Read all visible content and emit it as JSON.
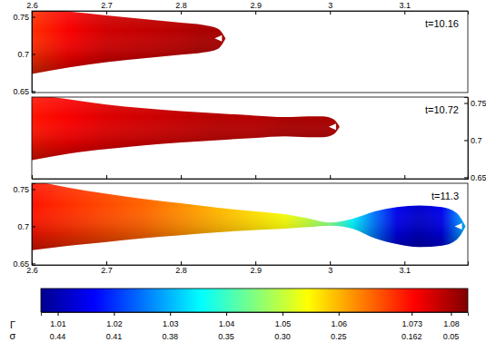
{
  "chart_data": [
    {
      "type": "area",
      "title": "t=10.16",
      "tick_labels": true,
      "xlim": [
        2.6,
        3.185
      ],
      "xticks": [
        2.6,
        2.7,
        2.8,
        2.9,
        3,
        3.1
      ],
      "ylim": [
        0.648,
        0.758
      ],
      "yticks": [
        0.65,
        0.7,
        0.75
      ],
      "x": [
        2.6,
        2.65,
        2.7,
        2.75,
        2.8,
        2.83,
        2.85,
        2.86
      ],
      "upper": [
        0.763,
        0.757,
        0.752,
        0.747,
        0.742,
        0.739,
        0.734,
        0.721
      ],
      "lower": [
        0.673,
        0.682,
        0.689,
        0.694,
        0.699,
        0.702,
        0.707,
        0.721
      ],
      "gamma": [
        1.07,
        1.074,
        1.077,
        1.078,
        1.079,
        1.08,
        1.08,
        1.08
      ]
    },
    {
      "type": "area",
      "title": "t=10.72",
      "tick_labels": "y",
      "xlim": [
        2.6,
        3.185
      ],
      "xticks": [
        2.6,
        2.7,
        2.8,
        2.9,
        3,
        3.1
      ],
      "ylim": [
        0.648,
        0.758
      ],
      "yticks": [
        0.65,
        0.7,
        0.75
      ],
      "x": [
        2.6,
        2.65,
        2.7,
        2.75,
        2.8,
        2.85,
        2.9,
        2.94,
        2.97,
        2.99,
        3.005,
        3.013
      ],
      "upper": [
        0.762,
        0.755,
        0.748,
        0.743,
        0.739,
        0.736,
        0.733,
        0.731,
        0.732,
        0.732,
        0.728,
        0.718
      ],
      "lower": [
        0.673,
        0.682,
        0.688,
        0.693,
        0.697,
        0.7,
        0.703,
        0.705,
        0.704,
        0.704,
        0.708,
        0.718
      ],
      "gamma": [
        1.072,
        1.074,
        1.076,
        1.077,
        1.078,
        1.079,
        1.079,
        1.08,
        1.08,
        1.08,
        1.08,
        1.08
      ]
    },
    {
      "type": "area",
      "title": "t=11.3",
      "tick_labels": true,
      "xlim": [
        2.6,
        3.185
      ],
      "xticks": [
        2.6,
        2.7,
        2.8,
        2.9,
        3,
        3.1
      ],
      "ylim": [
        0.648,
        0.758
      ],
      "yticks": [
        0.65,
        0.7,
        0.75
      ],
      "x": [
        2.6,
        2.65,
        2.7,
        2.75,
        2.8,
        2.85,
        2.9,
        2.94,
        2.97,
        3.0,
        3.03,
        3.06,
        3.09,
        3.12,
        3.15,
        3.17,
        3.182
      ],
      "upper": [
        0.762,
        0.752,
        0.744,
        0.737,
        0.731,
        0.725,
        0.72,
        0.716,
        0.711,
        0.705,
        0.71,
        0.72,
        0.726,
        0.728,
        0.726,
        0.718,
        0.7
      ],
      "lower": [
        0.668,
        0.674,
        0.679,
        0.684,
        0.688,
        0.692,
        0.695,
        0.697,
        0.699,
        0.701,
        0.697,
        0.684,
        0.676,
        0.672,
        0.674,
        0.682,
        0.7
      ],
      "gamma": [
        1.072,
        1.07,
        1.068,
        1.066,
        1.063,
        1.06,
        1.057,
        1.054,
        1.05,
        1.045,
        1.035,
        1.025,
        1.015,
        1.012,
        1.015,
        1.025,
        1.03
      ]
    }
  ],
  "colorbar": {
    "label": "Γ",
    "lim": [
      1.007,
      1.083
    ],
    "ticks": [
      1.01,
      1.02,
      1.03,
      1.04,
      1.05,
      1.06,
      1.073,
      1.08
    ],
    "sigma_label": "σ",
    "sigma_ticks": [
      0.44,
      0.41,
      0.38,
      0.35,
      {
        "value": 0.3,
        "label": "0.30"
      },
      0.25,
      0.162,
      0.05
    ]
  }
}
